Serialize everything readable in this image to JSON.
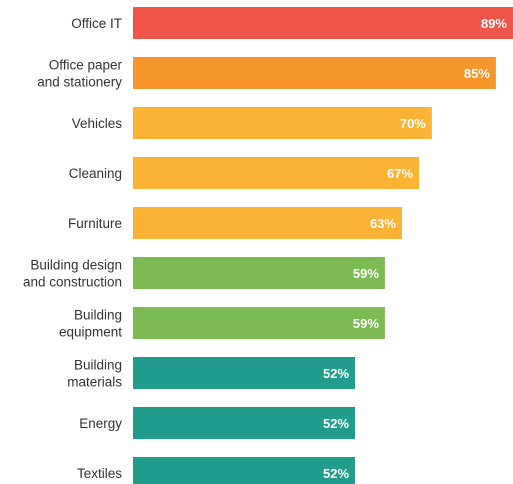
{
  "chart_data": {
    "type": "bar",
    "orientation": "horizontal",
    "title": "",
    "xlabel": "",
    "ylabel": "",
    "xlim": [
      0,
      89
    ],
    "grid": false,
    "legend": "none",
    "value_suffix": "%",
    "categories": [
      [
        "Office IT"
      ],
      [
        "Office paper",
        "and stationery"
      ],
      [
        "Vehicles"
      ],
      [
        "Cleaning"
      ],
      [
        "Furniture"
      ],
      [
        "Building design",
        "and construction"
      ],
      [
        "Building",
        "equipment"
      ],
      [
        "Building",
        "materials"
      ],
      [
        "Energy"
      ],
      [
        "Textiles"
      ]
    ],
    "values": [
      89,
      85,
      70,
      67,
      63,
      59,
      59,
      52,
      52,
      52
    ],
    "colors": [
      "#f0554a",
      "#f7962b",
      "#fbb335",
      "#fbb335",
      "#fbb335",
      "#7cbb53",
      "#7cbb53",
      "#229c8c",
      "#229c8c",
      "#229c8c"
    ]
  }
}
